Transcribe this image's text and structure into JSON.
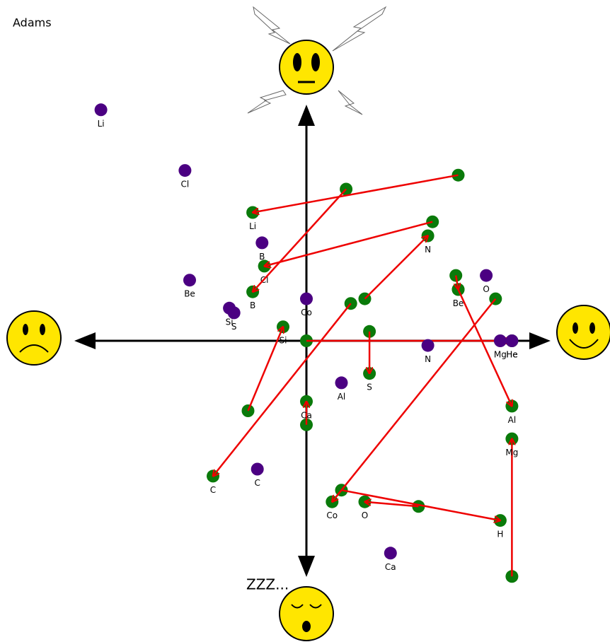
{
  "title": "Adams",
  "sleepy_label": "ZZZ...",
  "chart_data": {
    "type": "scatter",
    "xlim": [
      -100,
      100
    ],
    "ylim": [
      -100,
      100
    ],
    "series": [
      {
        "color": "#4b0082",
        "point_labels": [
          "Li",
          "Cl",
          "B",
          "Be",
          "Si",
          "S",
          "Co",
          "O",
          "Mg",
          "He",
          "N",
          "Al",
          "C",
          "Ca"
        ],
        "x": [
          -88,
          -52,
          -19,
          -50,
          -33,
          -31,
          0,
          77,
          83,
          88,
          52,
          15,
          -21,
          36
        ],
        "values": [
          99,
          73,
          42,
          26,
          14,
          12,
          18,
          28,
          0,
          0,
          -2,
          -18,
          -55,
          -91
        ]
      }
    ],
    "arrows": {
      "color": "#ee0000",
      "point_color": "#0a7a0a",
      "labels": [
        "Li",
        "Cl",
        "B",
        "N",
        "C",
        "Si",
        "He",
        "S",
        "Ca",
        "Be",
        "Al",
        "Co",
        "O",
        "H",
        "Mg"
      ],
      "x_from": [
        65,
        54,
        17,
        25,
        19,
        -25,
        0,
        27,
        0,
        64,
        65,
        81,
        48,
        15,
        88
      ],
      "y_from": [
        71,
        51,
        65,
        18,
        16,
        -30,
        0,
        4,
        -36,
        28,
        22,
        18,
        -71,
        -64,
        -101
      ],
      "x_to": [
        -23,
        -18,
        -23,
        52,
        -40,
        -10,
        88,
        27,
        0,
        65,
        88,
        11,
        25,
        83,
        88
      ],
      "y_to": [
        55,
        32,
        21,
        45,
        -58,
        6,
        0,
        -14,
        -26,
        22,
        -28,
        -69,
        -69,
        -77,
        -42
      ]
    }
  }
}
